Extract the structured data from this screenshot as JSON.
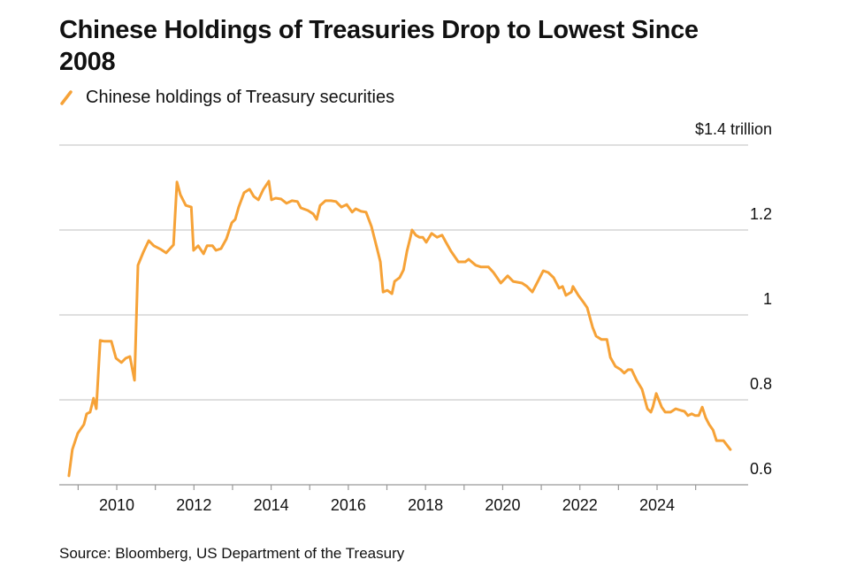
{
  "chart_data": {
    "type": "line",
    "title": "Chinese Holdings of Treasuries Drop to Lowest Since 2008",
    "source": "Source: Bloomberg, US Department of the Treasury",
    "xlim": [
      2008.51,
      2026.36
    ],
    "xticks": [
      2010,
      2012,
      2014,
      2016,
      2018,
      2020,
      2022,
      2024
    ],
    "xticks_minor": [
      2009,
      2010,
      2011,
      2012,
      2013,
      2014,
      2015,
      2016,
      2017,
      2018,
      2019,
      2020,
      2021,
      2022,
      2023,
      2024,
      2025
    ],
    "ylim": [
      0.6,
      1.4
    ],
    "yticks": [
      0.6,
      0.8,
      1.0,
      1.2,
      {
        "value": 1.4,
        "label": "$1.4 trillion"
      }
    ],
    "grid": true,
    "x": [
      2008.76,
      2008.85,
      2008.99,
      2009.15,
      2009.22,
      2009.31,
      2009.4,
      2009.47,
      2009.57,
      2009.68,
      2009.86,
      2009.98,
      2010.12,
      2010.23,
      2010.34,
      2010.46,
      2010.55,
      2010.69,
      2010.83,
      2010.96,
      2011.15,
      2011.28,
      2011.47,
      2011.56,
      2011.65,
      2011.79,
      2011.93,
      2011.99,
      2012.11,
      2012.25,
      2012.34,
      2012.48,
      2012.57,
      2012.7,
      2012.84,
      2012.98,
      2013.07,
      2013.16,
      2013.3,
      2013.44,
      2013.55,
      2013.67,
      2013.8,
      2013.94,
      2014.01,
      2014.12,
      2014.26,
      2014.4,
      2014.54,
      2014.68,
      2014.77,
      2014.95,
      2015.09,
      2015.18,
      2015.27,
      2015.41,
      2015.55,
      2015.68,
      2015.82,
      2015.96,
      2016.1,
      2016.19,
      2016.33,
      2016.46,
      2016.6,
      2016.74,
      2016.83,
      2016.9,
      2017.01,
      2017.13,
      2017.2,
      2017.33,
      2017.43,
      2017.52,
      2017.61,
      2017.65,
      2017.75,
      2017.84,
      2017.93,
      2018.02,
      2018.16,
      2018.3,
      2018.43,
      2018.53,
      2018.66,
      2018.85,
      2019.03,
      2019.12,
      2019.3,
      2019.44,
      2019.63,
      2019.76,
      2019.95,
      2020.13,
      2020.27,
      2020.5,
      2020.63,
      2020.77,
      2020.91,
      2021.05,
      2021.18,
      2021.32,
      2021.46,
      2021.55,
      2021.64,
      2021.78,
      2021.82,
      2021.96,
      2022.1,
      2022.19,
      2022.33,
      2022.42,
      2022.56,
      2022.7,
      2022.79,
      2022.92,
      2023.06,
      2023.15,
      2023.25,
      2023.34,
      2023.47,
      2023.61,
      2023.75,
      2023.84,
      2023.89,
      2023.98,
      2024.12,
      2024.21,
      2024.35,
      2024.48,
      2024.62,
      2024.71,
      2024.8,
      2024.9,
      2024.99,
      2025.08,
      2025.17,
      2025.26,
      2025.35,
      2025.45,
      2025.54,
      2025.72,
      2025.9
    ],
    "series": [
      {
        "name": "Chinese holdings of Treasury securities",
        "color": "#f6a237",
        "values": [
          0.621,
          0.683,
          0.721,
          0.742,
          0.767,
          0.771,
          0.804,
          0.779,
          0.94,
          0.938,
          0.938,
          0.898,
          0.888,
          0.898,
          0.902,
          0.846,
          1.117,
          1.148,
          1.175,
          1.163,
          1.154,
          1.146,
          1.165,
          1.313,
          1.283,
          1.258,
          1.254,
          1.152,
          1.163,
          1.144,
          1.163,
          1.163,
          1.152,
          1.156,
          1.179,
          1.217,
          1.225,
          1.254,
          1.288,
          1.296,
          1.279,
          1.271,
          1.296,
          1.315,
          1.271,
          1.275,
          1.273,
          1.263,
          1.269,
          1.267,
          1.252,
          1.246,
          1.238,
          1.225,
          1.258,
          1.269,
          1.269,
          1.267,
          1.254,
          1.26,
          1.242,
          1.25,
          1.244,
          1.242,
          1.208,
          1.158,
          1.125,
          1.054,
          1.058,
          1.05,
          1.079,
          1.088,
          1.106,
          1.15,
          1.183,
          1.2,
          1.188,
          1.183,
          1.183,
          1.171,
          1.192,
          1.183,
          1.188,
          1.171,
          1.15,
          1.125,
          1.125,
          1.131,
          1.117,
          1.113,
          1.113,
          1.1,
          1.075,
          1.092,
          1.079,
          1.075,
          1.067,
          1.054,
          1.079,
          1.104,
          1.1,
          1.088,
          1.063,
          1.067,
          1.046,
          1.054,
          1.067,
          1.046,
          1.029,
          1.017,
          0.971,
          0.95,
          0.942,
          0.942,
          0.9,
          0.879,
          0.871,
          0.863,
          0.871,
          0.871,
          0.846,
          0.825,
          0.779,
          0.771,
          0.783,
          0.815,
          0.783,
          0.771,
          0.771,
          0.779,
          0.775,
          0.773,
          0.763,
          0.767,
          0.763,
          0.763,
          0.783,
          0.758,
          0.742,
          0.729,
          0.704,
          0.704,
          0.683
        ]
      }
    ]
  }
}
